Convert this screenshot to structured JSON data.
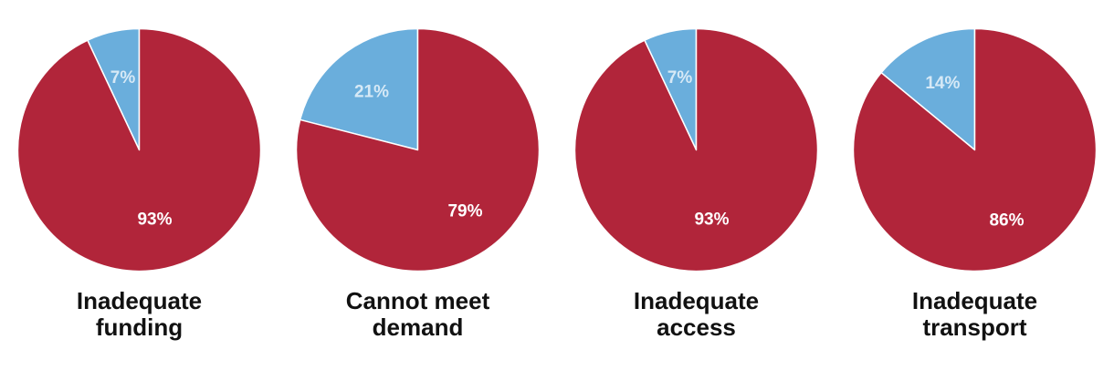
{
  "chart_data": [
    {
      "type": "pie",
      "title_lines": [
        "Inadequate",
        "funding"
      ],
      "slices": [
        {
          "value": 7,
          "label": "7%",
          "color": "#6aaedc"
        },
        {
          "value": 93,
          "label": "93%",
          "color": "#b1253a"
        }
      ]
    },
    {
      "type": "pie",
      "title_lines": [
        "Cannot meet",
        "demand"
      ],
      "slices": [
        {
          "value": 21,
          "label": "21%",
          "color": "#6aaedc"
        },
        {
          "value": 79,
          "label": "79%",
          "color": "#b1253a"
        }
      ]
    },
    {
      "type": "pie",
      "title_lines": [
        "Inadequate",
        "access"
      ],
      "slices": [
        {
          "value": 7,
          "label": "7%",
          "color": "#6aaedc"
        },
        {
          "value": 93,
          "label": "93%",
          "color": "#b1253a"
        }
      ]
    },
    {
      "type": "pie",
      "title_lines": [
        "Inadequate",
        "transport"
      ],
      "slices": [
        {
          "value": 14,
          "label": "14%",
          "color": "#6aaedc"
        },
        {
          "value": 86,
          "label": "86%",
          "color": "#b1253a"
        }
      ]
    }
  ],
  "colors": {
    "small_slice_label": "#d6e9f6",
    "large_slice_label": "#ffffff",
    "divider": "#ffffff"
  }
}
